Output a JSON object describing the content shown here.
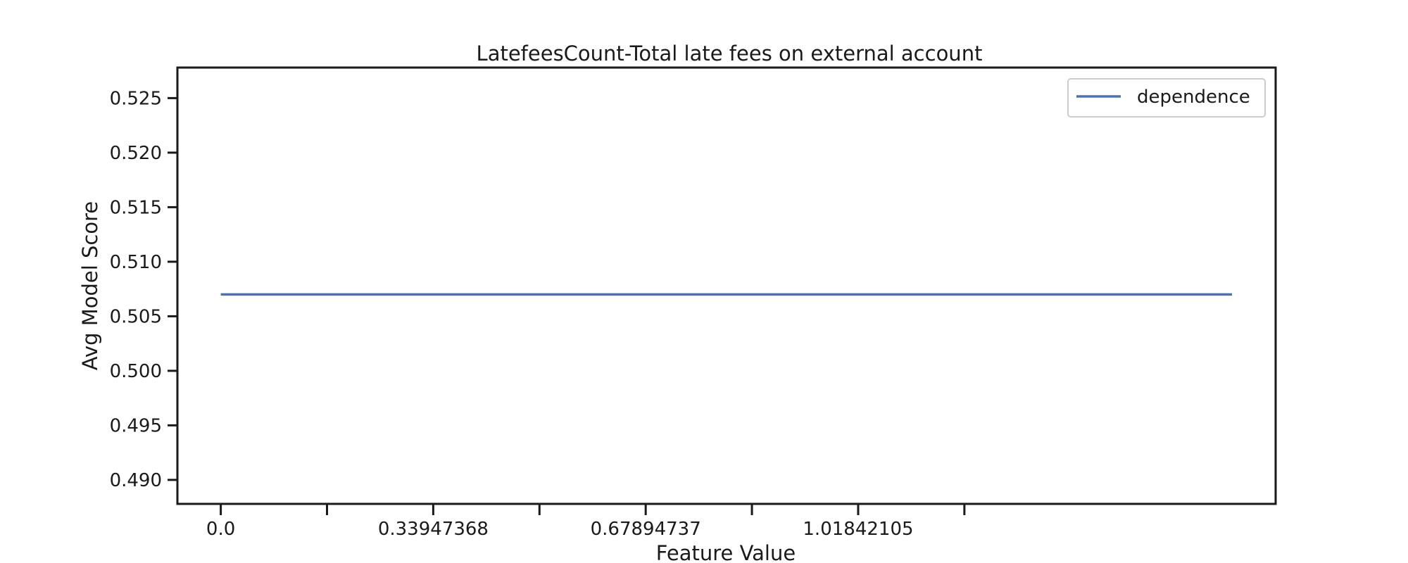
{
  "chart_data": {
    "type": "line",
    "title": "LatefeesCount-Total late fees on external account",
    "xlabel": "Feature Value",
    "ylabel": "Avg Model Score",
    "xlim": [
      -0.0693,
      1.6855
    ],
    "ylim": [
      0.4878,
      0.5278
    ],
    "x_ticks": [
      0.0,
      0.16973684,
      0.33947368,
      0.50921053,
      0.67894737,
      0.84868421,
      1.01842105,
      1.18815789
    ],
    "x_tick_labels": [
      "0.0",
      "",
      "0.33947368",
      "",
      "0.67894737",
      "",
      "1.01842105",
      ""
    ],
    "y_ticks": [
      0.49,
      0.495,
      0.5,
      0.505,
      0.51,
      0.515,
      0.52,
      0.525
    ],
    "y_tick_labels": [
      "0.490",
      "0.495",
      "0.500",
      "0.505",
      "0.510",
      "0.515",
      "0.520",
      "0.525"
    ],
    "series": [
      {
        "name": "dependence",
        "color": "#4c72b0",
        "x": [
          0.0,
          1.61578947
        ],
        "y": [
          0.507,
          0.507
        ]
      }
    ],
    "legend_position": "top-right",
    "grid": false
  }
}
